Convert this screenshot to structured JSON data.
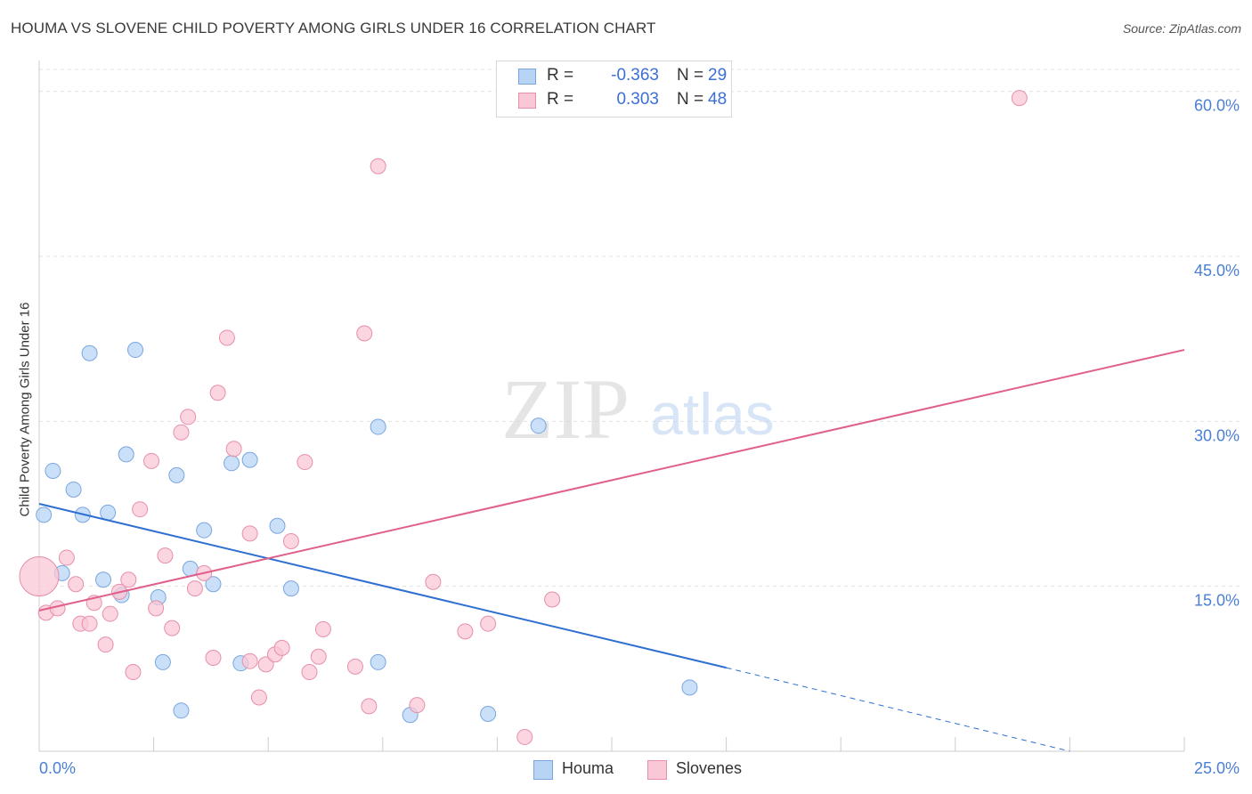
{
  "title": "HOUMA VS SLOVENE CHILD POVERTY AMONG GIRLS UNDER 16 CORRELATION CHART",
  "source": "Source: ZipAtlas.com",
  "watermark": {
    "zip": "ZIP",
    "atlas": "atlas"
  },
  "colors": {
    "houma_fill": "#b8d4f5",
    "houma_stroke": "#7aa6df",
    "houma_line": "#2f6fd1",
    "slovene_fill": "#f9c7d5",
    "slovene_stroke": "#e690ab",
    "slovene_line": "#e0608a",
    "tick_label": "#4a7fd4",
    "grid": "#e2e2e2"
  },
  "stats": [
    {
      "label": "R =",
      "r": "-0.363",
      "n_label": "N =",
      "n": "29"
    },
    {
      "label": "R =",
      "r": "0.303",
      "n_label": "N =",
      "n": "48"
    }
  ],
  "legend": [
    "Houma",
    "Slovenes"
  ],
  "chart_data": {
    "type": "scatter",
    "xlabel": "",
    "ylabel": "Child Poverty Among Girls Under 16",
    "xlim": [
      0,
      25
    ],
    "ylim": [
      0,
      62
    ],
    "x_tick_labels": [
      "0.0%",
      "25.0%"
    ],
    "y_ticks": [
      15,
      30,
      45,
      60
    ],
    "y_tick_labels": [
      "15.0%",
      "30.0%",
      "45.0%",
      "60.0%"
    ],
    "grid": true,
    "legend_position": "bottom-center",
    "series": [
      {
        "name": "Houma",
        "points": [
          [
            0.1,
            21.5
          ],
          [
            0.3,
            25.5
          ],
          [
            0.5,
            16.2
          ],
          [
            0.75,
            23.8
          ],
          [
            0.95,
            21.5
          ],
          [
            1.1,
            36.2
          ],
          [
            1.4,
            15.6
          ],
          [
            1.5,
            21.7
          ],
          [
            1.8,
            14.2
          ],
          [
            1.9,
            27.0
          ],
          [
            2.1,
            36.5
          ],
          [
            2.6,
            14.0
          ],
          [
            2.7,
            8.1
          ],
          [
            3.0,
            25.1
          ],
          [
            3.1,
            3.7
          ],
          [
            3.3,
            16.6
          ],
          [
            3.6,
            20.1
          ],
          [
            3.8,
            15.2
          ],
          [
            4.2,
            26.2
          ],
          [
            4.4,
            8.0
          ],
          [
            4.6,
            26.5
          ],
          [
            5.2,
            20.5
          ],
          [
            5.5,
            14.8
          ],
          [
            7.4,
            8.1
          ],
          [
            7.4,
            29.5
          ],
          [
            8.1,
            3.3
          ],
          [
            9.8,
            3.4
          ],
          [
            10.9,
            29.6
          ],
          [
            14.2,
            5.8
          ]
        ],
        "trend": {
          "x0": 0,
          "y0": 22.5,
          "x1": 15,
          "y1": 7.6,
          "dashed_to": 22.5,
          "dashed_y": 0
        }
      },
      {
        "name": "Slovenes",
        "points": [
          [
            0.0,
            15.9
          ],
          [
            0.15,
            12.6
          ],
          [
            0.4,
            13.0
          ],
          [
            0.6,
            17.6
          ],
          [
            0.8,
            15.2
          ],
          [
            0.9,
            11.6
          ],
          [
            1.1,
            11.6
          ],
          [
            1.2,
            13.5
          ],
          [
            1.45,
            9.7
          ],
          [
            1.55,
            12.5
          ],
          [
            1.75,
            14.5
          ],
          [
            1.95,
            15.6
          ],
          [
            2.05,
            7.2
          ],
          [
            2.2,
            22.0
          ],
          [
            2.45,
            26.4
          ],
          [
            2.55,
            13.0
          ],
          [
            2.75,
            17.8
          ],
          [
            2.9,
            11.2
          ],
          [
            3.1,
            29.0
          ],
          [
            3.25,
            30.4
          ],
          [
            3.4,
            14.8
          ],
          [
            3.6,
            16.2
          ],
          [
            3.8,
            8.5
          ],
          [
            3.9,
            32.6
          ],
          [
            4.1,
            37.6
          ],
          [
            4.25,
            27.5
          ],
          [
            4.6,
            8.2
          ],
          [
            4.6,
            19.8
          ],
          [
            4.8,
            4.9
          ],
          [
            4.95,
            7.9
          ],
          [
            5.15,
            8.8
          ],
          [
            5.3,
            9.4
          ],
          [
            5.5,
            19.1
          ],
          [
            5.8,
            26.3
          ],
          [
            5.9,
            7.2
          ],
          [
            6.1,
            8.6
          ],
          [
            6.2,
            11.1
          ],
          [
            6.9,
            7.7
          ],
          [
            7.1,
            38.0
          ],
          [
            7.2,
            4.1
          ],
          [
            7.4,
            53.2
          ],
          [
            8.25,
            4.2
          ],
          [
            8.6,
            15.4
          ],
          [
            9.3,
            10.9
          ],
          [
            9.8,
            11.6
          ],
          [
            10.6,
            1.3
          ],
          [
            11.2,
            13.8
          ],
          [
            21.4,
            59.4
          ]
        ],
        "trend": {
          "x0": 0,
          "y0": 12.8,
          "x1": 25,
          "y1": 36.5
        }
      }
    ]
  }
}
